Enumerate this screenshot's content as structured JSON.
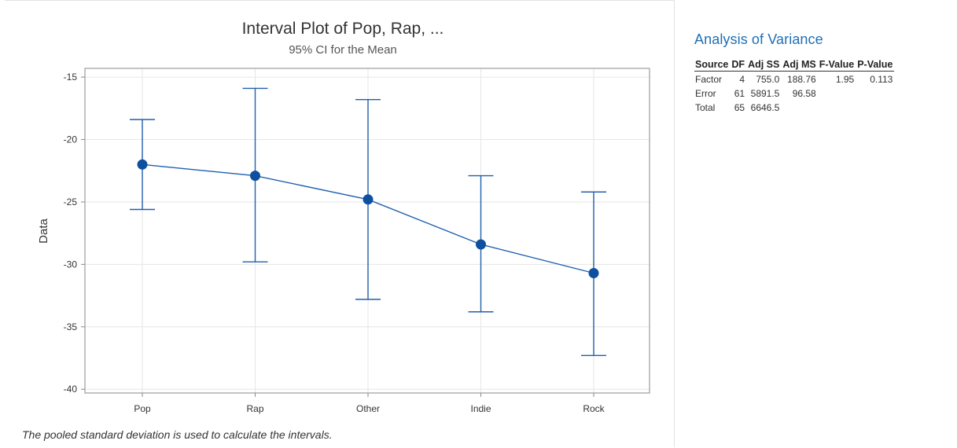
{
  "chart_data": {
    "type": "interval",
    "title": "Interval Plot of Pop, Rap, ...",
    "subtitle": "95% CI for the Mean",
    "xlabel": "",
    "ylabel": "Data",
    "ylim": [
      -40.3,
      -14.3
    ],
    "yticks": [
      -15,
      -20,
      -25,
      -30,
      -35,
      -40
    ],
    "yticklabels": [
      "-15",
      "-20",
      "-25",
      "-30",
      "-35",
      "-40"
    ],
    "grid": true,
    "categories": [
      "Pop",
      "Rap",
      "Other",
      "Indie",
      "Rock"
    ],
    "means": [
      -22.0,
      -22.9,
      -24.8,
      -28.4,
      -30.7
    ],
    "ci_lower": [
      -25.6,
      -29.8,
      -32.8,
      -33.8,
      -37.3
    ],
    "ci_upper": [
      -18.4,
      -15.9,
      -16.8,
      -22.9,
      -24.2
    ],
    "colors": {
      "series": "#1f5fae",
      "marker": "#0f4fa0",
      "grid": "#e6e6e6",
      "frame": "#8a8a8a"
    }
  },
  "footnote": "The pooled standard deviation is used to calculate the intervals.",
  "anova": {
    "title": "Analysis of Variance",
    "headers": [
      "Source",
      "DF",
      "Adj SS",
      "Adj MS",
      "F-Value",
      "P-Value"
    ],
    "rows": [
      [
        "Factor",
        "4",
        "755.0",
        "188.76",
        "1.95",
        "0.113"
      ],
      [
        "Error",
        "61",
        "5891.5",
        "96.58",
        "",
        ""
      ],
      [
        "Total",
        "65",
        "6646.5",
        "",
        "",
        ""
      ]
    ]
  }
}
